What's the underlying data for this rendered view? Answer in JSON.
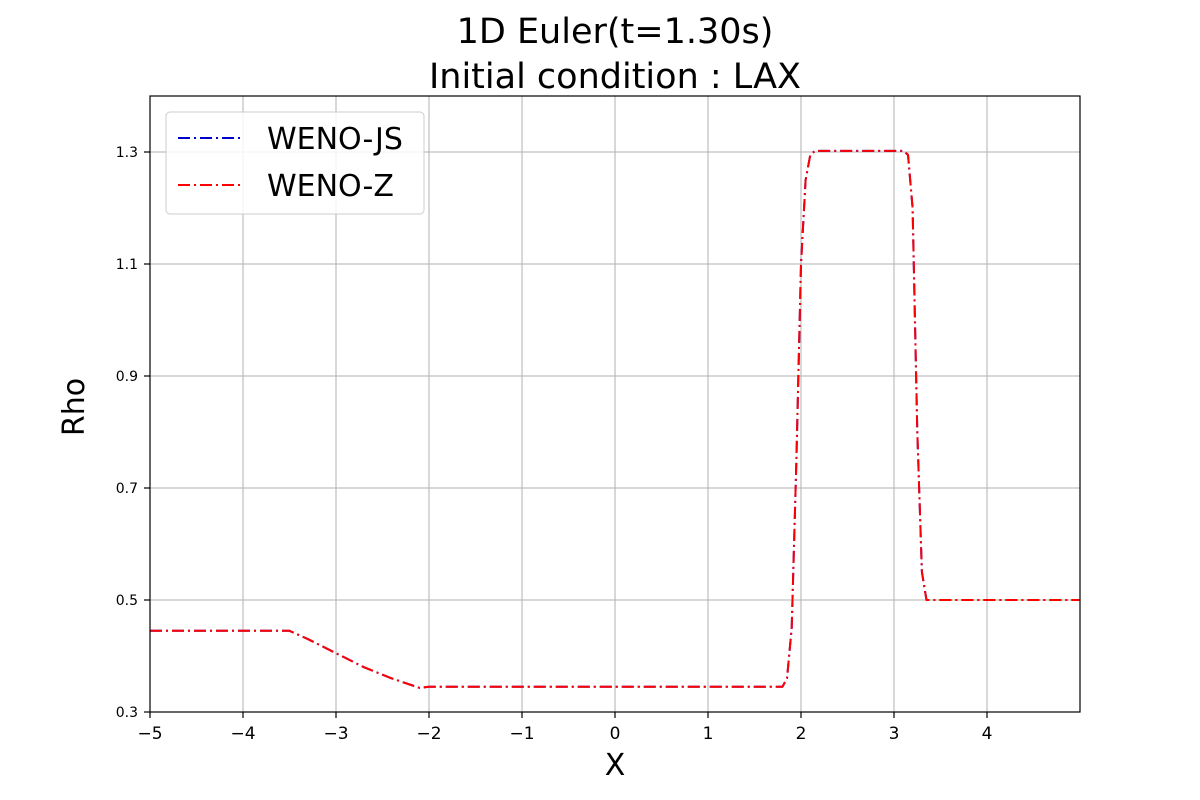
{
  "chart_data": {
    "type": "line",
    "title": "1D Euler(t=1.30s)",
    "subtitle": "Initial condition : LAX",
    "xlabel": "X",
    "ylabel": "Rho",
    "xlim": [
      -5,
      5
    ],
    "ylim": [
      0.3,
      1.4
    ],
    "x_ticks": [
      -5,
      -4,
      -3,
      -2,
      -1,
      0,
      1,
      2,
      3,
      4
    ],
    "x_tick_labels": [
      "−5",
      "−4",
      "−3",
      "−2",
      "−1",
      "0",
      "1",
      "2",
      "3",
      "4"
    ],
    "y_ticks": [
      0.3,
      0.5,
      0.7,
      0.9,
      1.1,
      1.3
    ],
    "y_tick_labels": [
      "0.3",
      "0.5",
      "0.7",
      "0.9",
      "1.1",
      "1.3"
    ],
    "grid": true,
    "legend_position": "top-left",
    "series": [
      {
        "name": "WENO-JS",
        "color": "#0000cc",
        "style": "dash-dot",
        "x": [
          -5,
          -3.5,
          -3.3,
          -3.0,
          -2.7,
          -2.4,
          -2.1,
          -2.0,
          1.8,
          1.85,
          1.9,
          1.95,
          2.0,
          2.05,
          2.1,
          2.15,
          3.1,
          3.15,
          3.2,
          3.25,
          3.3,
          3.35,
          5
        ],
        "y": [
          0.445,
          0.445,
          0.43,
          0.405,
          0.38,
          0.36,
          0.343,
          0.345,
          0.345,
          0.36,
          0.45,
          0.75,
          1.1,
          1.25,
          1.295,
          1.302,
          1.302,
          1.295,
          1.2,
          0.8,
          0.55,
          0.5,
          0.5
        ]
      },
      {
        "name": "WENO-Z",
        "color": "#ff0000",
        "style": "dash-dot",
        "x": [
          -5,
          -3.5,
          -3.3,
          -3.0,
          -2.7,
          -2.4,
          -2.1,
          -2.0,
          1.8,
          1.85,
          1.9,
          1.95,
          2.0,
          2.05,
          2.1,
          2.15,
          3.1,
          3.15,
          3.2,
          3.25,
          3.3,
          3.35,
          5
        ],
        "y": [
          0.445,
          0.445,
          0.43,
          0.405,
          0.38,
          0.36,
          0.343,
          0.345,
          0.345,
          0.36,
          0.45,
          0.75,
          1.1,
          1.25,
          1.295,
          1.302,
          1.302,
          1.295,
          1.2,
          0.8,
          0.55,
          0.5,
          0.5
        ]
      }
    ]
  }
}
